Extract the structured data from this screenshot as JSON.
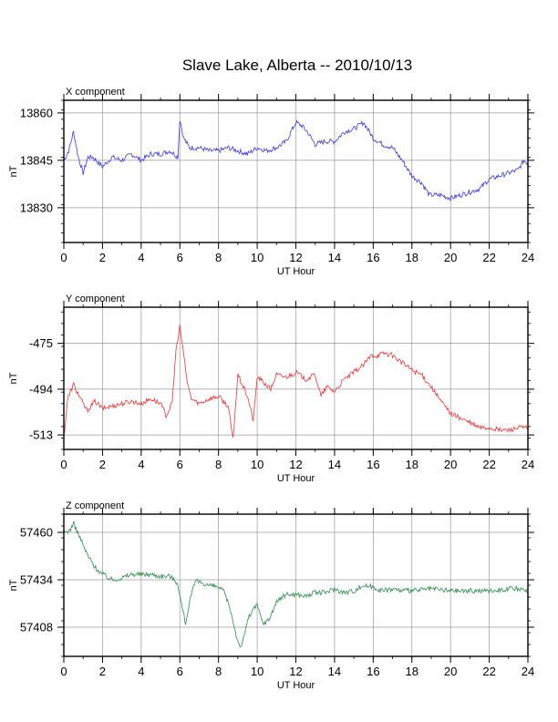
{
  "figure": {
    "title": "Slave Lake, Alberta -- 2010/10/13"
  },
  "chart_data": [
    {
      "type": "line",
      "panel_label": "X component",
      "xlabel": "UT Hour",
      "ylabel": "nT",
      "xlim": [
        0,
        24
      ],
      "ylim": [
        13819,
        13864
      ],
      "xticks": [
        0,
        2,
        4,
        6,
        8,
        10,
        12,
        14,
        16,
        18,
        20,
        22,
        24
      ],
      "yticks": [
        13830,
        13845,
        13860
      ],
      "grid": true,
      "color": "#3a3ad8",
      "series": [
        {
          "x": [
            0,
            0.25,
            0.5,
            0.75,
            1,
            1.25,
            1.5,
            2,
            2.5,
            3,
            3.5,
            4,
            4.5,
            5,
            5.5,
            5.9,
            6,
            6.2,
            6.5,
            7,
            7.5,
            8,
            8.5,
            9,
            9.5,
            10,
            10.5,
            11,
            11.5,
            12,
            12.3,
            12.6,
            13,
            13.5,
            14,
            14.5,
            15,
            15.5,
            16,
            16.5,
            17,
            17.5,
            18,
            18.5,
            18.9,
            19.5,
            20,
            20.5,
            21,
            21.5,
            22,
            22.5,
            23,
            23.5,
            23.8,
            24
          ],
          "y": [
            13845,
            13848,
            13854,
            13846,
            13841,
            13846,
            13846,
            13843,
            13846,
            13845,
            13847,
            13845,
            13847,
            13847,
            13848,
            13846,
            13858,
            13852,
            13849,
            13849,
            13848,
            13848,
            13849,
            13848,
            13847,
            13849,
            13848,
            13849,
            13851,
            13857,
            13856,
            13854,
            13850,
            13851,
            13851,
            13854,
            13855,
            13857,
            13852,
            13850,
            13849,
            13845,
            13840,
            13838,
            13834,
            13834,
            13833,
            13834,
            13835,
            13836,
            13839,
            13840,
            13841,
            13842,
            13845,
            13844
          ]
        }
      ]
    },
    {
      "type": "line",
      "panel_label": "Y component",
      "xlabel": "UT Hour",
      "ylabel": "nT",
      "xlim": [
        0,
        24
      ],
      "ylim": [
        -519,
        -460
      ],
      "xticks": [
        0,
        2,
        4,
        6,
        8,
        10,
        12,
        14,
        16,
        18,
        20,
        22,
        24
      ],
      "yticks": [
        -513,
        -494,
        -475
      ],
      "grid": true,
      "color": "#e03a3a",
      "series": [
        {
          "x": [
            0,
            0.2,
            0.5,
            0.8,
            1.2,
            1.6,
            2,
            2.5,
            3,
            3.5,
            4,
            4.5,
            5,
            5.3,
            5.6,
            5.8,
            6,
            6.2,
            6.4,
            6.6,
            7,
            7.5,
            8,
            8.5,
            8.75,
            9,
            9.5,
            9.8,
            10,
            10.3,
            10.7,
            11,
            11.5,
            12,
            12.5,
            13,
            13.3,
            13.6,
            14,
            14.5,
            15,
            15.5,
            15.9,
            16.2,
            16.6,
            17,
            17.5,
            18,
            18.5,
            19,
            19.5,
            20,
            20.5,
            21,
            21.5,
            22,
            22.5,
            23,
            23.5,
            24
          ],
          "y": [
            -514,
            -498,
            -492,
            -497,
            -503,
            -499,
            -502,
            -501,
            -500,
            -499,
            -500,
            -498,
            -500,
            -505,
            -500,
            -478,
            -468,
            -480,
            -492,
            -498,
            -500,
            -498,
            -497,
            -501,
            -515,
            -488,
            -497,
            -507,
            -489,
            -491,
            -494,
            -488,
            -489,
            -487,
            -490,
            -488,
            -497,
            -493,
            -495,
            -490,
            -487,
            -484,
            -480,
            -480,
            -479,
            -480,
            -483,
            -486,
            -488,
            -493,
            -499,
            -504,
            -506,
            -508,
            -510,
            -510,
            -511,
            -511,
            -510,
            -510
          ]
        }
      ]
    },
    {
      "type": "line",
      "panel_label": "Z component",
      "xlabel": "UT Hour",
      "ylabel": "nT",
      "xlim": [
        0,
        24
      ],
      "ylim": [
        57392,
        57470
      ],
      "xticks": [
        0,
        2,
        4,
        6,
        8,
        10,
        12,
        14,
        16,
        18,
        20,
        22,
        24
      ],
      "yticks": [
        57408,
        57434,
        57460
      ],
      "grid": true,
      "color": "#2f8a4e",
      "series": [
        {
          "x": [
            0,
            0.3,
            0.5,
            0.8,
            1.2,
            1.6,
            2,
            2.5,
            3,
            3.5,
            4,
            4.5,
            5,
            5.5,
            5.9,
            6,
            6.3,
            6.5,
            6.8,
            7,
            7.5,
            8,
            8.3,
            8.6,
            9,
            9.2,
            9.5,
            9.8,
            10,
            10.3,
            10.6,
            11,
            11.5,
            12,
            12.5,
            13,
            13.5,
            14,
            14.5,
            15,
            15.5,
            16,
            16.5,
            17,
            17.5,
            18,
            19,
            20,
            21,
            22,
            23,
            23.5,
            24
          ],
          "y": [
            57460,
            57461,
            57465,
            57458,
            57448,
            57441,
            57437,
            57434,
            57435,
            57437,
            57437,
            57437,
            57436,
            57436,
            57432,
            57425,
            57410,
            57422,
            57433,
            57433,
            57431,
            57430,
            57427,
            57418,
            57400,
            57397,
            57412,
            57418,
            57420,
            57410,
            57412,
            57422,
            57426,
            57426,
            57425,
            57427,
            57427,
            57429,
            57427,
            57428,
            57431,
            57430,
            57428,
            57429,
            57428,
            57428,
            57429,
            57428,
            57428,
            57428,
            57429,
            57429,
            57427
          ]
        }
      ]
    }
  ]
}
